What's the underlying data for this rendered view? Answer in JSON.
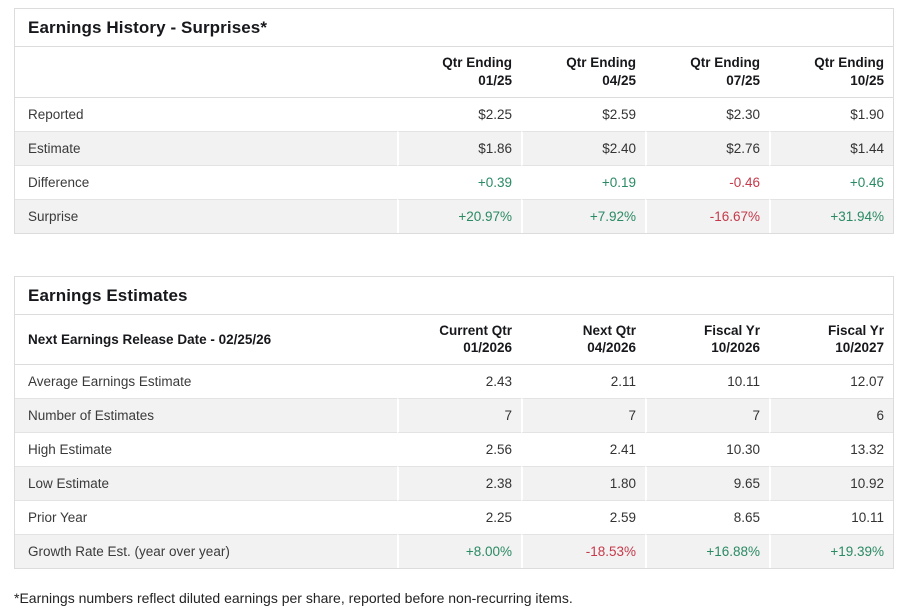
{
  "colors": {
    "positive": "#2a8a64",
    "negative": "#c5394a"
  },
  "surprises_table": {
    "title": "Earnings History - Surprises*",
    "corner_label": "",
    "columns": [
      {
        "line1": "Qtr Ending",
        "line2": "01/25"
      },
      {
        "line1": "Qtr Ending",
        "line2": "04/25"
      },
      {
        "line1": "Qtr Ending",
        "line2": "07/25"
      },
      {
        "line1": "Qtr Ending",
        "line2": "10/25"
      }
    ],
    "rows": [
      {
        "label": "Reported",
        "values": [
          {
            "text": "$2.25"
          },
          {
            "text": "$2.59"
          },
          {
            "text": "$2.30"
          },
          {
            "text": "$1.90"
          }
        ]
      },
      {
        "label": "Estimate",
        "values": [
          {
            "text": "$1.86"
          },
          {
            "text": "$2.40"
          },
          {
            "text": "$2.76"
          },
          {
            "text": "$1.44"
          }
        ]
      },
      {
        "label": "Difference",
        "values": [
          {
            "text": "+0.39",
            "tone": "pos"
          },
          {
            "text": "+0.19",
            "tone": "pos"
          },
          {
            "text": "-0.46",
            "tone": "neg"
          },
          {
            "text": "+0.46",
            "tone": "pos"
          }
        ]
      },
      {
        "label": "Surprise",
        "values": [
          {
            "text": "+20.97%",
            "tone": "pos"
          },
          {
            "text": "+7.92%",
            "tone": "pos"
          },
          {
            "text": "-16.67%",
            "tone": "neg"
          },
          {
            "text": "+31.94%",
            "tone": "pos"
          }
        ]
      }
    ]
  },
  "estimates_table": {
    "title": "Earnings Estimates",
    "corner_label": "Next Earnings Release Date - 02/25/26",
    "columns": [
      {
        "line1": "Current Qtr",
        "line2": "01/2026"
      },
      {
        "line1": "Next Qtr",
        "line2": "04/2026"
      },
      {
        "line1": "Fiscal Yr",
        "line2": "10/2026"
      },
      {
        "line1": "Fiscal Yr",
        "line2": "10/2027"
      }
    ],
    "rows": [
      {
        "label": "Average Earnings Estimate",
        "values": [
          {
            "text": "2.43"
          },
          {
            "text": "2.11"
          },
          {
            "text": "10.11"
          },
          {
            "text": "12.07"
          }
        ]
      },
      {
        "label": "Number of Estimates",
        "values": [
          {
            "text": "7"
          },
          {
            "text": "7"
          },
          {
            "text": "7"
          },
          {
            "text": "6"
          }
        ]
      },
      {
        "label": "High Estimate",
        "values": [
          {
            "text": "2.56"
          },
          {
            "text": "2.41"
          },
          {
            "text": "10.30"
          },
          {
            "text": "13.32"
          }
        ]
      },
      {
        "label": "Low Estimate",
        "values": [
          {
            "text": "2.38"
          },
          {
            "text": "1.80"
          },
          {
            "text": "9.65"
          },
          {
            "text": "10.92"
          }
        ]
      },
      {
        "label": "Prior Year",
        "values": [
          {
            "text": "2.25"
          },
          {
            "text": "2.59"
          },
          {
            "text": "8.65"
          },
          {
            "text": "10.11"
          }
        ]
      },
      {
        "label": "Growth Rate Est. (year over year)",
        "values": [
          {
            "text": "+8.00%",
            "tone": "pos"
          },
          {
            "text": "-18.53%",
            "tone": "neg"
          },
          {
            "text": "+16.88%",
            "tone": "pos"
          },
          {
            "text": "+19.39%",
            "tone": "pos"
          }
        ]
      }
    ]
  },
  "footnote": "*Earnings numbers reflect diluted earnings per share, reported before non-recurring items."
}
